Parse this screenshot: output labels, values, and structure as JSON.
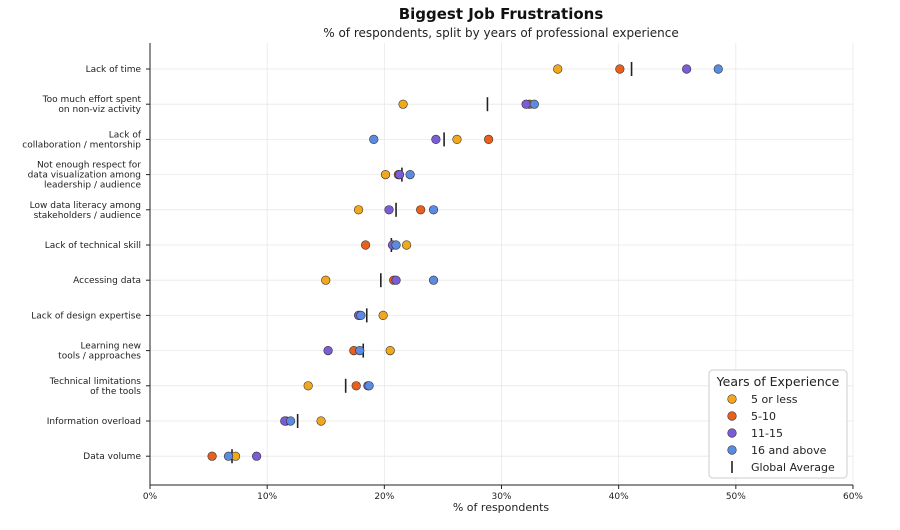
{
  "chart_data": {
    "type": "scatter",
    "title": "Biggest Job Frustrations",
    "subtitle": "% of respondents, split by years of professional experience",
    "xlabel": "% of respondents",
    "ylabel": "",
    "xlim": [
      0,
      60
    ],
    "x_ticks": [
      0,
      10,
      20,
      30,
      40,
      50,
      60
    ],
    "x_tick_labels": [
      "0%",
      "10%",
      "20%",
      "30%",
      "40%",
      "50%",
      "60%"
    ],
    "grid": true,
    "legend_placement": "bottom-right",
    "legend_title": "Years of Experience",
    "categories": [
      [
        "Lack of time"
      ],
      [
        "Too much effort spent",
        "on non-viz activity"
      ],
      [
        "Lack of",
        "collaboration / mentorship"
      ],
      [
        "Not enough respect for",
        "data visualization among",
        "leadership / audience"
      ],
      [
        "Low data literacy among",
        "stakeholders / audience"
      ],
      [
        "Lack of technical skill"
      ],
      [
        "Accessing data"
      ],
      [
        "Lack of design expertise"
      ],
      [
        "Learning new",
        "tools / approaches"
      ],
      [
        "Technical limitations",
        "of the tools"
      ],
      [
        "Information overload"
      ],
      [
        "Data volume"
      ]
    ],
    "series": [
      {
        "name": "5 or less",
        "color": "#F2A81D",
        "values": [
          34.8,
          21.6,
          26.2,
          20.1,
          17.8,
          21.9,
          15.0,
          19.9,
          20.5,
          13.5,
          14.6,
          7.3
        ]
      },
      {
        "name": "5-10",
        "color": "#E8601C",
        "values": [
          40.1,
          32.4,
          28.9,
          21.2,
          23.1,
          18.4,
          20.8,
          17.9,
          17.4,
          17.6,
          11.6,
          5.3
        ]
      },
      {
        "name": "11-15",
        "color": "#7B5CD6",
        "values": [
          45.8,
          32.1,
          24.4,
          21.3,
          20.4,
          20.7,
          21.0,
          17.8,
          15.2,
          18.6,
          11.5,
          9.1
        ]
      },
      {
        "name": "16 and above",
        "color": "#5B8BE0",
        "values": [
          48.5,
          32.8,
          19.1,
          22.2,
          24.2,
          21.0,
          24.2,
          18.0,
          17.9,
          18.7,
          12.0,
          6.7
        ]
      }
    ],
    "global_average": {
      "name": "Global Average",
      "values": [
        41.1,
        28.8,
        25.1,
        21.5,
        21.0,
        20.6,
        19.7,
        18.5,
        18.2,
        16.7,
        12.6,
        7.0
      ]
    }
  }
}
